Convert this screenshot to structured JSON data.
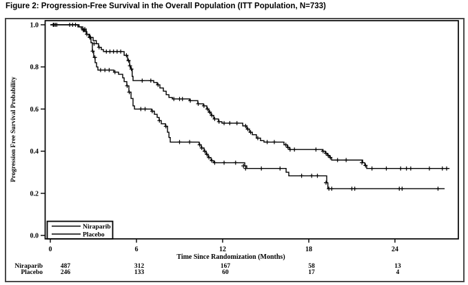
{
  "title": "Figure 2: Progression-Free Survival in the Overall Population (ITT Population, N=733)",
  "chart_data": {
    "type": "line",
    "subtype": "kaplan-meier",
    "xlabel": "Time Since Randomization (Months)",
    "ylabel": "Progression Free Survival Probability",
    "xlim": [
      0,
      28.4
    ],
    "ylim": [
      0.0,
      1.0
    ],
    "x_ticks": [
      0,
      6,
      12,
      18,
      24
    ],
    "y_ticks": [
      {
        "value": 1.0,
        "label": "1.0"
      },
      {
        "value": 0.8,
        "label": "0.8"
      },
      {
        "value": 0.6,
        "label": "0.6"
      },
      {
        "value": 0.4,
        "label": "0.4"
      },
      {
        "value": 0.2,
        "label": "0.2"
      },
      {
        "value": 0.0,
        "label": "0.0"
      }
    ],
    "grid": false,
    "legend": {
      "position": "bottom-left-inside",
      "entries": [
        "Niraparib",
        "Placebo"
      ]
    },
    "series": [
      {
        "name": "Niraparib",
        "color": "#000000",
        "start": [
          0,
          1.0
        ],
        "end_month": 27.8,
        "steps": [
          [
            1.92,
            0.99
          ],
          [
            2.26,
            0.975
          ],
          [
            2.5,
            0.955
          ],
          [
            2.74,
            0.94
          ],
          [
            2.98,
            0.925
          ],
          [
            3.2,
            0.91
          ],
          [
            3.36,
            0.893
          ],
          [
            3.55,
            0.882
          ],
          [
            3.7,
            0.873
          ],
          [
            5.14,
            0.855
          ],
          [
            5.38,
            0.83
          ],
          [
            5.52,
            0.805
          ],
          [
            5.6,
            0.79
          ],
          [
            5.7,
            0.755
          ],
          [
            5.76,
            0.735
          ],
          [
            7.2,
            0.726
          ],
          [
            7.44,
            0.715
          ],
          [
            7.63,
            0.7
          ],
          [
            7.87,
            0.685
          ],
          [
            8.07,
            0.668
          ],
          [
            8.26,
            0.655
          ],
          [
            8.5,
            0.648
          ],
          [
            9.7,
            0.64
          ],
          [
            10.27,
            0.625
          ],
          [
            10.66,
            0.615
          ],
          [
            10.9,
            0.6
          ],
          [
            11.04,
            0.585
          ],
          [
            11.19,
            0.57
          ],
          [
            11.38,
            0.553
          ],
          [
            11.71,
            0.54
          ],
          [
            11.95,
            0.533
          ],
          [
            13.4,
            0.52
          ],
          [
            13.68,
            0.505
          ],
          [
            13.87,
            0.49
          ],
          [
            14.07,
            0.478
          ],
          [
            14.35,
            0.462
          ],
          [
            14.64,
            0.45
          ],
          [
            14.88,
            0.443
          ],
          [
            16.27,
            0.43
          ],
          [
            16.51,
            0.418
          ],
          [
            16.66,
            0.408
          ],
          [
            18.96,
            0.4
          ],
          [
            19.15,
            0.39
          ],
          [
            19.3,
            0.38
          ],
          [
            19.44,
            0.37
          ],
          [
            19.59,
            0.358
          ],
          [
            21.75,
            0.345
          ],
          [
            21.9,
            0.332
          ],
          [
            22.03,
            0.318
          ]
        ],
        "censor_marks": [
          [
            0.2,
            1.0
          ],
          [
            0.35,
            1.0
          ],
          [
            1.35,
            1.0
          ],
          [
            1.55,
            1.0
          ],
          [
            1.75,
            1.0
          ],
          [
            2.3,
            0.975
          ],
          [
            2.55,
            0.955
          ],
          [
            2.8,
            0.94
          ],
          [
            3.05,
            0.91
          ],
          [
            3.4,
            0.893
          ],
          [
            3.9,
            0.873
          ],
          [
            4.15,
            0.873
          ],
          [
            4.4,
            0.873
          ],
          [
            4.65,
            0.873
          ],
          [
            4.9,
            0.873
          ],
          [
            5.3,
            0.855
          ],
          [
            5.45,
            0.83
          ],
          [
            5.55,
            0.805
          ],
          [
            5.65,
            0.79
          ],
          [
            6.4,
            0.735
          ],
          [
            7.0,
            0.735
          ],
          [
            7.5,
            0.715
          ],
          [
            8.6,
            0.648
          ],
          [
            9.0,
            0.648
          ],
          [
            9.2,
            0.648
          ],
          [
            9.75,
            0.64
          ],
          [
            10.3,
            0.625
          ],
          [
            10.7,
            0.615
          ],
          [
            10.95,
            0.6
          ],
          [
            11.1,
            0.585
          ],
          [
            11.25,
            0.57
          ],
          [
            11.45,
            0.553
          ],
          [
            11.75,
            0.54
          ],
          [
            12.1,
            0.533
          ],
          [
            12.5,
            0.533
          ],
          [
            13.0,
            0.533
          ],
          [
            13.6,
            0.52
          ],
          [
            13.75,
            0.505
          ],
          [
            13.95,
            0.49
          ],
          [
            14.45,
            0.462
          ],
          [
            15.1,
            0.443
          ],
          [
            15.6,
            0.443
          ],
          [
            16.4,
            0.43
          ],
          [
            16.55,
            0.418
          ],
          [
            16.7,
            0.408
          ],
          [
            17.0,
            0.408
          ],
          [
            18.5,
            0.408
          ],
          [
            19.0,
            0.4
          ],
          [
            19.2,
            0.39
          ],
          [
            19.35,
            0.38
          ],
          [
            19.5,
            0.37
          ],
          [
            20.0,
            0.358
          ],
          [
            20.6,
            0.358
          ],
          [
            21.7,
            0.345
          ],
          [
            21.95,
            0.332
          ],
          [
            22.4,
            0.318
          ],
          [
            23.4,
            0.318
          ],
          [
            24.4,
            0.318
          ],
          [
            24.8,
            0.318
          ],
          [
            25.1,
            0.318
          ],
          [
            26.4,
            0.318
          ],
          [
            27.3,
            0.318
          ],
          [
            27.6,
            0.318
          ]
        ]
      },
      {
        "name": "Placebo",
        "color": "#000000",
        "start": [
          0,
          1.0
        ],
        "end_month": 27.46,
        "steps": [
          [
            2.0,
            0.99
          ],
          [
            2.16,
            0.98
          ],
          [
            2.35,
            0.968
          ],
          [
            2.54,
            0.955
          ],
          [
            2.69,
            0.94
          ],
          [
            2.83,
            0.915
          ],
          [
            2.93,
            0.875
          ],
          [
            3.02,
            0.845
          ],
          [
            3.12,
            0.82
          ],
          [
            3.22,
            0.8
          ],
          [
            3.31,
            0.785
          ],
          [
            4.42,
            0.775
          ],
          [
            4.75,
            0.765
          ],
          [
            5.04,
            0.748
          ],
          [
            5.14,
            0.73
          ],
          [
            5.33,
            0.71
          ],
          [
            5.47,
            0.68
          ],
          [
            5.62,
            0.65
          ],
          [
            5.76,
            0.615
          ],
          [
            5.86,
            0.6
          ],
          [
            7.06,
            0.59
          ],
          [
            7.25,
            0.575
          ],
          [
            7.44,
            0.56
          ],
          [
            7.58,
            0.545
          ],
          [
            7.73,
            0.53
          ],
          [
            8.02,
            0.518
          ],
          [
            8.16,
            0.49
          ],
          [
            8.26,
            0.465
          ],
          [
            8.35,
            0.443
          ],
          [
            10.37,
            0.43
          ],
          [
            10.51,
            0.415
          ],
          [
            10.71,
            0.4
          ],
          [
            10.85,
            0.385
          ],
          [
            10.99,
            0.37
          ],
          [
            11.19,
            0.355
          ],
          [
            11.38,
            0.345
          ],
          [
            13.54,
            0.33
          ],
          [
            13.68,
            0.318
          ],
          [
            16.42,
            0.3
          ],
          [
            16.61,
            0.283
          ],
          [
            19.25,
            0.25
          ],
          [
            19.33,
            0.222
          ]
        ],
        "censor_marks": [
          [
            0.25,
            1.0
          ],
          [
            0.45,
            1.0
          ],
          [
            2.4,
            0.98
          ],
          [
            2.75,
            0.94
          ],
          [
            2.95,
            0.875
          ],
          [
            3.1,
            0.845
          ],
          [
            3.5,
            0.785
          ],
          [
            3.8,
            0.785
          ],
          [
            4.1,
            0.785
          ],
          [
            4.5,
            0.775
          ],
          [
            5.35,
            0.71
          ],
          [
            5.5,
            0.68
          ],
          [
            6.3,
            0.6
          ],
          [
            6.6,
            0.6
          ],
          [
            7.1,
            0.59
          ],
          [
            7.6,
            0.545
          ],
          [
            8.05,
            0.518
          ],
          [
            9.0,
            0.443
          ],
          [
            9.7,
            0.443
          ],
          [
            10.4,
            0.43
          ],
          [
            10.55,
            0.415
          ],
          [
            10.75,
            0.4
          ],
          [
            10.9,
            0.385
          ],
          [
            11.05,
            0.37
          ],
          [
            11.25,
            0.355
          ],
          [
            11.45,
            0.345
          ],
          [
            12.1,
            0.345
          ],
          [
            12.9,
            0.345
          ],
          [
            13.45,
            0.33
          ],
          [
            13.6,
            0.318
          ],
          [
            14.7,
            0.318
          ],
          [
            16.0,
            0.318
          ],
          [
            17.5,
            0.283
          ],
          [
            18.2,
            0.283
          ],
          [
            18.6,
            0.283
          ],
          [
            19.2,
            0.25
          ],
          [
            19.4,
            0.222
          ],
          [
            19.6,
            0.222
          ],
          [
            21.0,
            0.222
          ],
          [
            21.2,
            0.222
          ],
          [
            24.3,
            0.222
          ],
          [
            24.5,
            0.222
          ],
          [
            27.0,
            0.222
          ]
        ]
      }
    ]
  },
  "risk_table": {
    "time_points": [
      0,
      6,
      12,
      18,
      24
    ],
    "rows": [
      {
        "label": "Niraparib",
        "counts": [
          "487",
          "312",
          "167",
          "58",
          "13"
        ]
      },
      {
        "label": "Placebo",
        "counts": [
          "246",
          "133",
          "60",
          "17",
          "4"
        ]
      }
    ]
  }
}
